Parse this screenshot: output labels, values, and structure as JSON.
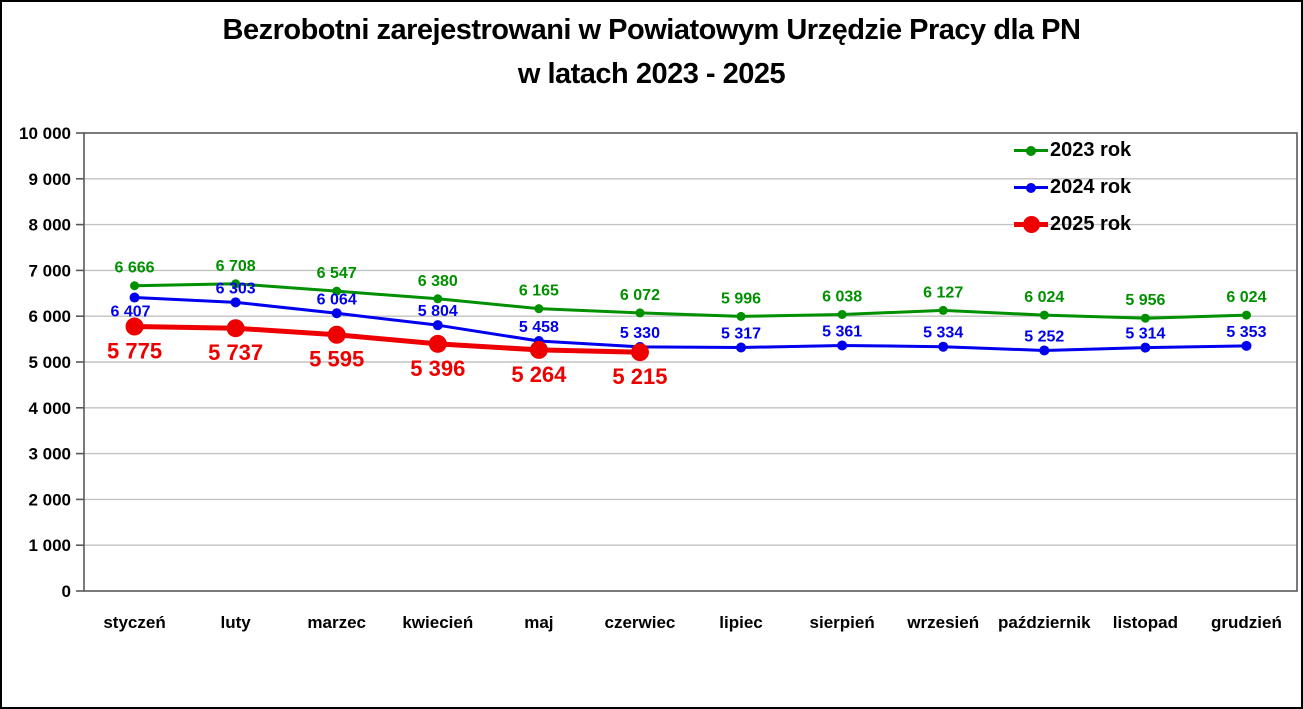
{
  "title": {
    "line1": "Bezrobotni zarejestrowani w Powiatowym Urzędzie Pracy dla PN",
    "line2": "w latach 2023 - 2025"
  },
  "chart_data": {
    "type": "line",
    "title": "Bezrobotni zarejestrowani w Powiatowym Urzędzie Pracy dla PN w latach 2023 - 2025",
    "categories": [
      "styczeń",
      "luty",
      "marzec",
      "kwiecień",
      "maj",
      "czerwiec",
      "lipiec",
      "sierpień",
      "wrzesień",
      "październik",
      "listopad",
      "grudzień"
    ],
    "series": [
      {
        "name": "2023 rok",
        "color": "#009000",
        "values": [
          6666,
          6708,
          6547,
          6380,
          6165,
          6072,
          5996,
          6038,
          6127,
          6024,
          5956,
          6024
        ]
      },
      {
        "name": "2024 rok",
        "color": "#0000ee",
        "values": [
          6407,
          6303,
          6064,
          5804,
          5458,
          5330,
          5317,
          5361,
          5334,
          5252,
          5314,
          5353
        ]
      },
      {
        "name": "2025 rok",
        "color": "#ee0000",
        "values": [
          5775,
          5737,
          5595,
          5396,
          5264,
          5215
        ]
      }
    ],
    "xlabel": "",
    "ylabel": "",
    "ylim": [
      0,
      10000
    ],
    "ytick_step": 1000,
    "ytick_labels": [
      "0",
      "1 000",
      "2 000",
      "3 000",
      "4 000",
      "5 000",
      "6 000",
      "7 000",
      "8 000",
      "9 000",
      "10 000"
    ],
    "grid": "horizontal",
    "legend_position": "top-right",
    "data_labels": true,
    "number_format": "space-thousands"
  },
  "style": {
    "background": "#ffffff",
    "frame_border": "#000000",
    "grid_color": "#c2c2c2",
    "axis_color": "#595959",
    "tick_label_color": "#000000"
  }
}
